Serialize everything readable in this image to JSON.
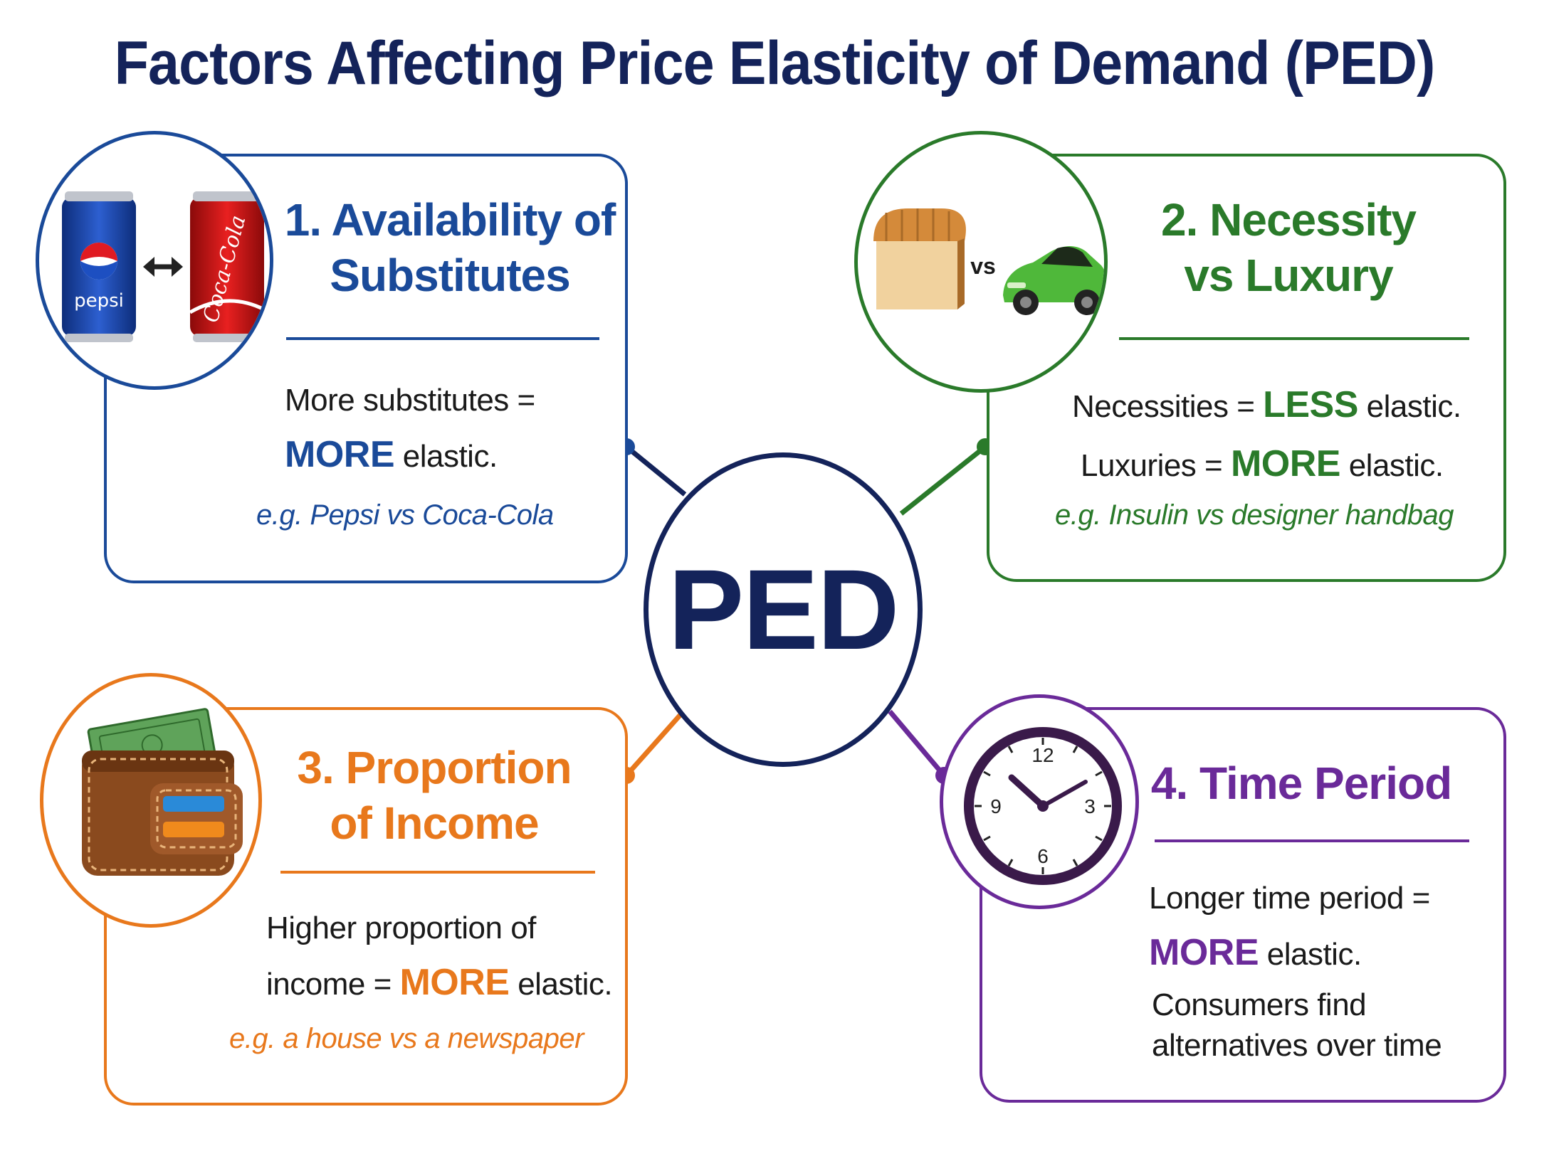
{
  "title": "Factors Affecting Price Elasticity of Demand (PED)",
  "hub": {
    "label": "PED"
  },
  "colors": {
    "navy": "#14235a",
    "blue": "#1a4a99",
    "green": "#2a7a2a",
    "orange": "#e8781c",
    "purple": "#6a2a99"
  },
  "factors": [
    {
      "heading_line1": "1. Availability of",
      "heading_line2": "Substitutes",
      "body_line1": "More substitutes =",
      "body_emph": "MORE",
      "body_line2_rest": " elastic.",
      "example": "e.g. Pepsi vs Coca-Cola",
      "icon": {
        "name": "cans-icon",
        "left_label": "pepsi",
        "right_label": "Coca-Cola"
      }
    },
    {
      "heading_line1": "2. Necessity",
      "heading_line2": "vs Luxury",
      "line1_pre": "Necessities = ",
      "line1_emph": "LESS",
      "line1_post": " elastic.",
      "line2_pre": "Luxuries = ",
      "line2_emph": "MORE",
      "line2_post": " elastic.",
      "example": "e.g. Insulin vs designer handbag",
      "icon": {
        "name": "bread-vs-car-icon",
        "vs_label": "vs"
      }
    },
    {
      "heading_line1": "3. Proportion",
      "heading_line2": "of Income",
      "body_line1": "Higher proportion of",
      "body_line2_pre": "income = ",
      "body_emph": "MORE",
      "body_line2_post": " elastic.",
      "example": "e.g. a house vs a newspaper",
      "icon": {
        "name": "wallet-icon"
      }
    },
    {
      "heading_line1": "4. Time Period",
      "body_line1": "Longer time period =",
      "body_emph": "MORE",
      "body_line2_rest": " elastic.",
      "note_line1": "Consumers find",
      "note_line2": "alternatives over time",
      "icon": {
        "name": "clock-icon",
        "n12": "12",
        "n3": "3",
        "n6": "6",
        "n9": "9"
      }
    }
  ]
}
